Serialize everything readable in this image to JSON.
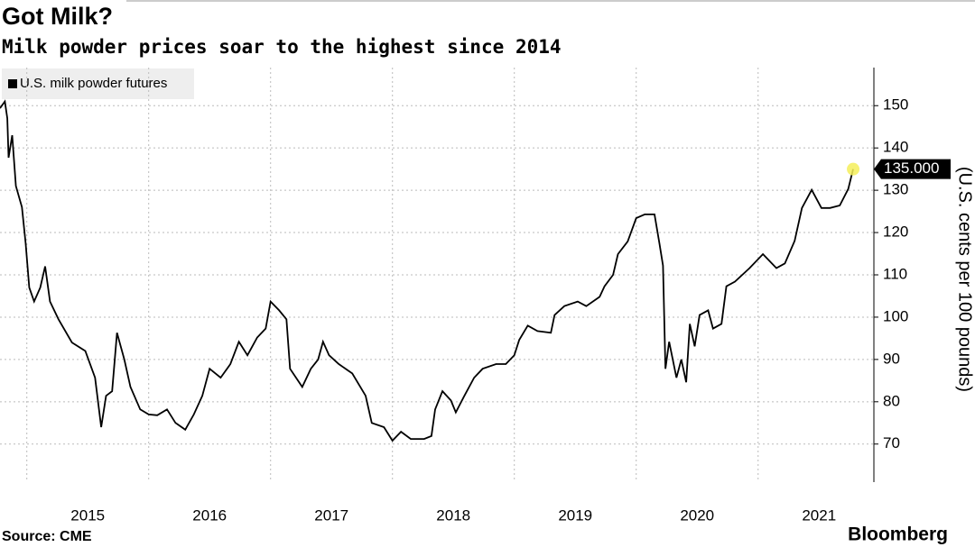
{
  "chart_data": {
    "type": "line",
    "title": "Got Milk?",
    "subtitle": "Milk powder prices soar to the highest since 2014",
    "y_axis_label": "(U.S. cents per 100 pounds)",
    "source": "Source: CME",
    "brand": "Bloomberg",
    "series": [
      {
        "name": "U.S. milk powder futures",
        "color": "#000000",
        "x": [
          2014.78,
          2014.82,
          2014.84,
          2014.85,
          2014.88,
          2014.91,
          2014.96,
          2014.99,
          2015.02,
          2015.06,
          2015.11,
          2015.15,
          2015.19,
          2015.26,
          2015.37,
          2015.48,
          2015.56,
          2015.61,
          2015.65,
          2015.7,
          2015.74,
          2015.8,
          2015.85,
          2015.93,
          2016.0,
          2016.07,
          2016.15,
          2016.22,
          2016.3,
          2016.37,
          2016.44,
          2016.5,
          2016.59,
          2016.67,
          2016.74,
          2016.81,
          2016.89,
          2016.96,
          2017.0,
          2017.07,
          2017.13,
          2017.16,
          2017.26,
          2017.33,
          2017.39,
          2017.43,
          2017.48,
          2017.56,
          2017.67,
          2017.78,
          2017.83,
          2017.93,
          2018.0,
          2018.07,
          2018.15,
          2018.26,
          2018.32,
          2018.35,
          2018.41,
          2018.48,
          2018.52,
          2018.59,
          2018.67,
          2018.74,
          2018.85,
          2018.93,
          2019.0,
          2019.04,
          2019.11,
          2019.19,
          2019.3,
          2019.33,
          2019.41,
          2019.52,
          2019.59,
          2019.7,
          2019.74,
          2019.81,
          2019.85,
          2019.93,
          2020.0,
          2020.07,
          2020.15,
          2020.19,
          2020.22,
          2020.24,
          2020.27,
          2020.33,
          2020.37,
          2020.41,
          2020.44,
          2020.48,
          2020.52,
          2020.59,
          2020.63,
          2020.7,
          2020.74,
          2020.81,
          2020.93,
          2021.04,
          2021.15,
          2021.22,
          2021.3,
          2021.36,
          2021.44,
          2021.52,
          2021.59,
          2021.67,
          2021.74,
          2021.78
        ],
        "values": [
          149.4,
          151,
          147,
          137.7,
          143,
          131,
          126,
          117.5,
          107,
          103.7,
          107,
          112,
          103.7,
          99.5,
          94,
          92,
          85.7,
          74,
          81.4,
          82.5,
          96.3,
          90,
          83.5,
          78.2,
          77,
          76.8,
          78.2,
          75,
          73.4,
          77,
          81.4,
          87.8,
          85.7,
          88.9,
          94.2,
          91,
          95.2,
          97.3,
          103.7,
          101.6,
          99.5,
          87.8,
          83.5,
          87.8,
          90,
          94.2,
          91,
          88.9,
          86.7,
          81.4,
          75,
          74,
          70.8,
          72.9,
          71.2,
          71.2,
          71.9,
          78.2,
          82.5,
          80.3,
          77.5,
          81.4,
          85.7,
          87.8,
          88.9,
          88.9,
          91,
          94.6,
          98,
          96.7,
          96.3,
          100.5,
          102.6,
          103.7,
          102.6,
          104.8,
          107.3,
          110,
          114.9,
          117.9,
          123.4,
          124.3,
          124.3,
          117.5,
          112.2,
          87.8,
          94.2,
          85.7,
          90,
          84.6,
          98.4,
          93.1,
          100.5,
          101.6,
          97.3,
          98.4,
          107.3,
          108.4,
          111.6,
          114.9,
          111.6,
          112.7,
          118,
          125.8,
          130.1,
          125.8,
          125.8,
          126.4,
          130.3,
          135
        ]
      }
    ],
    "annotation": {
      "value": 135,
      "label": "135.000"
    },
    "xlim": [
      2014.78,
      2021.95
    ],
    "ylim": [
      61,
      159
    ],
    "xticks": [
      {
        "value": 2015.5,
        "label": "2015"
      },
      {
        "value": 2016.5,
        "label": "2016"
      },
      {
        "value": 2017.5,
        "label": "2017"
      },
      {
        "value": 2018.5,
        "label": "2018"
      },
      {
        "value": 2019.5,
        "label": "2019"
      },
      {
        "value": 2020.5,
        "label": "2020"
      },
      {
        "value": 2021.5,
        "label": "2021"
      }
    ],
    "xgrid": [
      2015,
      2016,
      2017,
      2018,
      2019,
      2020,
      2021
    ],
    "yticks": [
      70,
      80,
      90,
      100,
      110,
      120,
      130,
      140,
      150
    ],
    "grid": true,
    "legend": "top-left"
  }
}
